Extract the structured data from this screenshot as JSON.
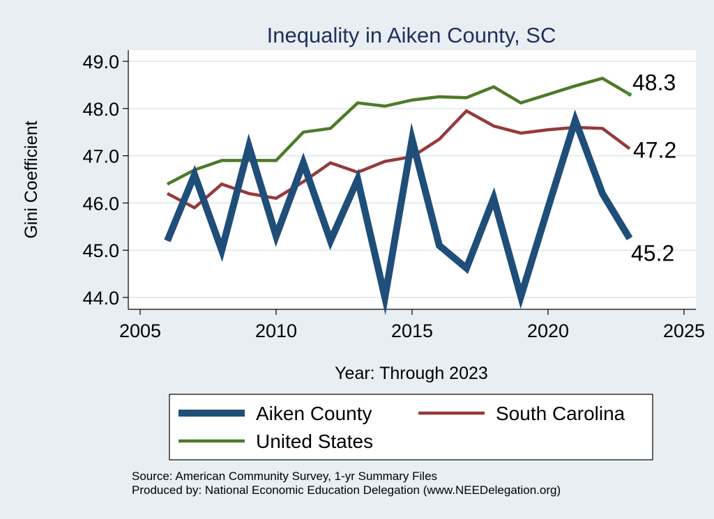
{
  "chart_data": {
    "type": "line",
    "title": "Inequality in Aiken County, SC",
    "xlabel": "Year: Through 2023",
    "ylabel": "Gini Coefficient",
    "xlim": [
      2005,
      2025
    ],
    "ylim": [
      44.0,
      49.0
    ],
    "x_ticks": [
      "2005",
      "2010",
      "2015",
      "2020",
      "2025"
    ],
    "y_ticks": [
      "44.0",
      "45.0",
      "46.0",
      "47.0",
      "48.0",
      "49.0"
    ],
    "grid": true,
    "legend_placement": "bottom",
    "x": [
      2006,
      2007,
      2008,
      2009,
      2010,
      2011,
      2012,
      2013,
      2014,
      2015,
      2016,
      2017,
      2018,
      2019,
      2020,
      2021,
      2022,
      2023
    ],
    "series": [
      {
        "name": "Aiken County",
        "color": "#1f4e79",
        "values": [
          45.2,
          46.6,
          45.0,
          47.2,
          45.3,
          46.85,
          45.2,
          46.5,
          44.0,
          47.35,
          45.1,
          44.62,
          46.1,
          44.02,
          45.9,
          47.75,
          46.2,
          45.25
        ],
        "end_label": "45.2"
      },
      {
        "name": "South Carolina",
        "color": "#963a3c",
        "values": [
          46.2,
          45.9,
          46.4,
          46.2,
          46.1,
          46.45,
          46.85,
          46.65,
          46.88,
          46.98,
          47.35,
          47.95,
          47.63,
          47.48,
          47.55,
          47.6,
          47.58,
          47.15
        ],
        "end_label": "47.2"
      },
      {
        "name": "United States",
        "color": "#4e7a28",
        "values": [
          46.4,
          46.7,
          46.9,
          46.9,
          46.9,
          47.5,
          47.58,
          48.12,
          48.05,
          48.18,
          48.25,
          48.23,
          48.46,
          48.12,
          48.3,
          48.48,
          48.64,
          48.3
        ],
        "end_label": "48.3"
      }
    ]
  },
  "source_note": "Source: American Community Survey, 1-yr Summary Files",
  "produced_note": "Produced by: National Economic Education Delegation (www.NEEDelegation.org)"
}
